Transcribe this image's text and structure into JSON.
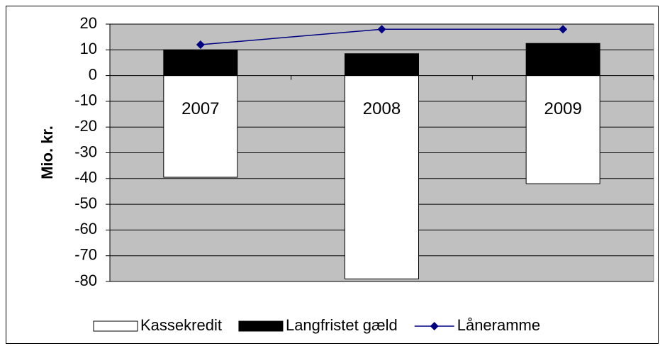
{
  "chart_data": {
    "type": "bar",
    "stacked": true,
    "y_label": "Mio. kr.",
    "categories": [
      "2007",
      "2008",
      "2009"
    ],
    "series": [
      {
        "name": "Kassekredit",
        "type": "bar",
        "color": "#ffffff",
        "values": [
          -39.5,
          -79,
          -42
        ]
      },
      {
        "name": "Langfristet gæld",
        "type": "bar",
        "color": "#000000",
        "values": [
          10,
          8.5,
          12.5
        ]
      },
      {
        "name": "Låneramme",
        "type": "line",
        "color": "#000080",
        "values": [
          12,
          18,
          18
        ]
      }
    ],
    "ylim": [
      -80,
      20
    ],
    "yticks": [
      -80,
      -70,
      -60,
      -50,
      -40,
      -30,
      -20,
      -10,
      0,
      10,
      20
    ],
    "grid": true,
    "legend": "bottom",
    "plot_background": "#c0c0c0"
  }
}
